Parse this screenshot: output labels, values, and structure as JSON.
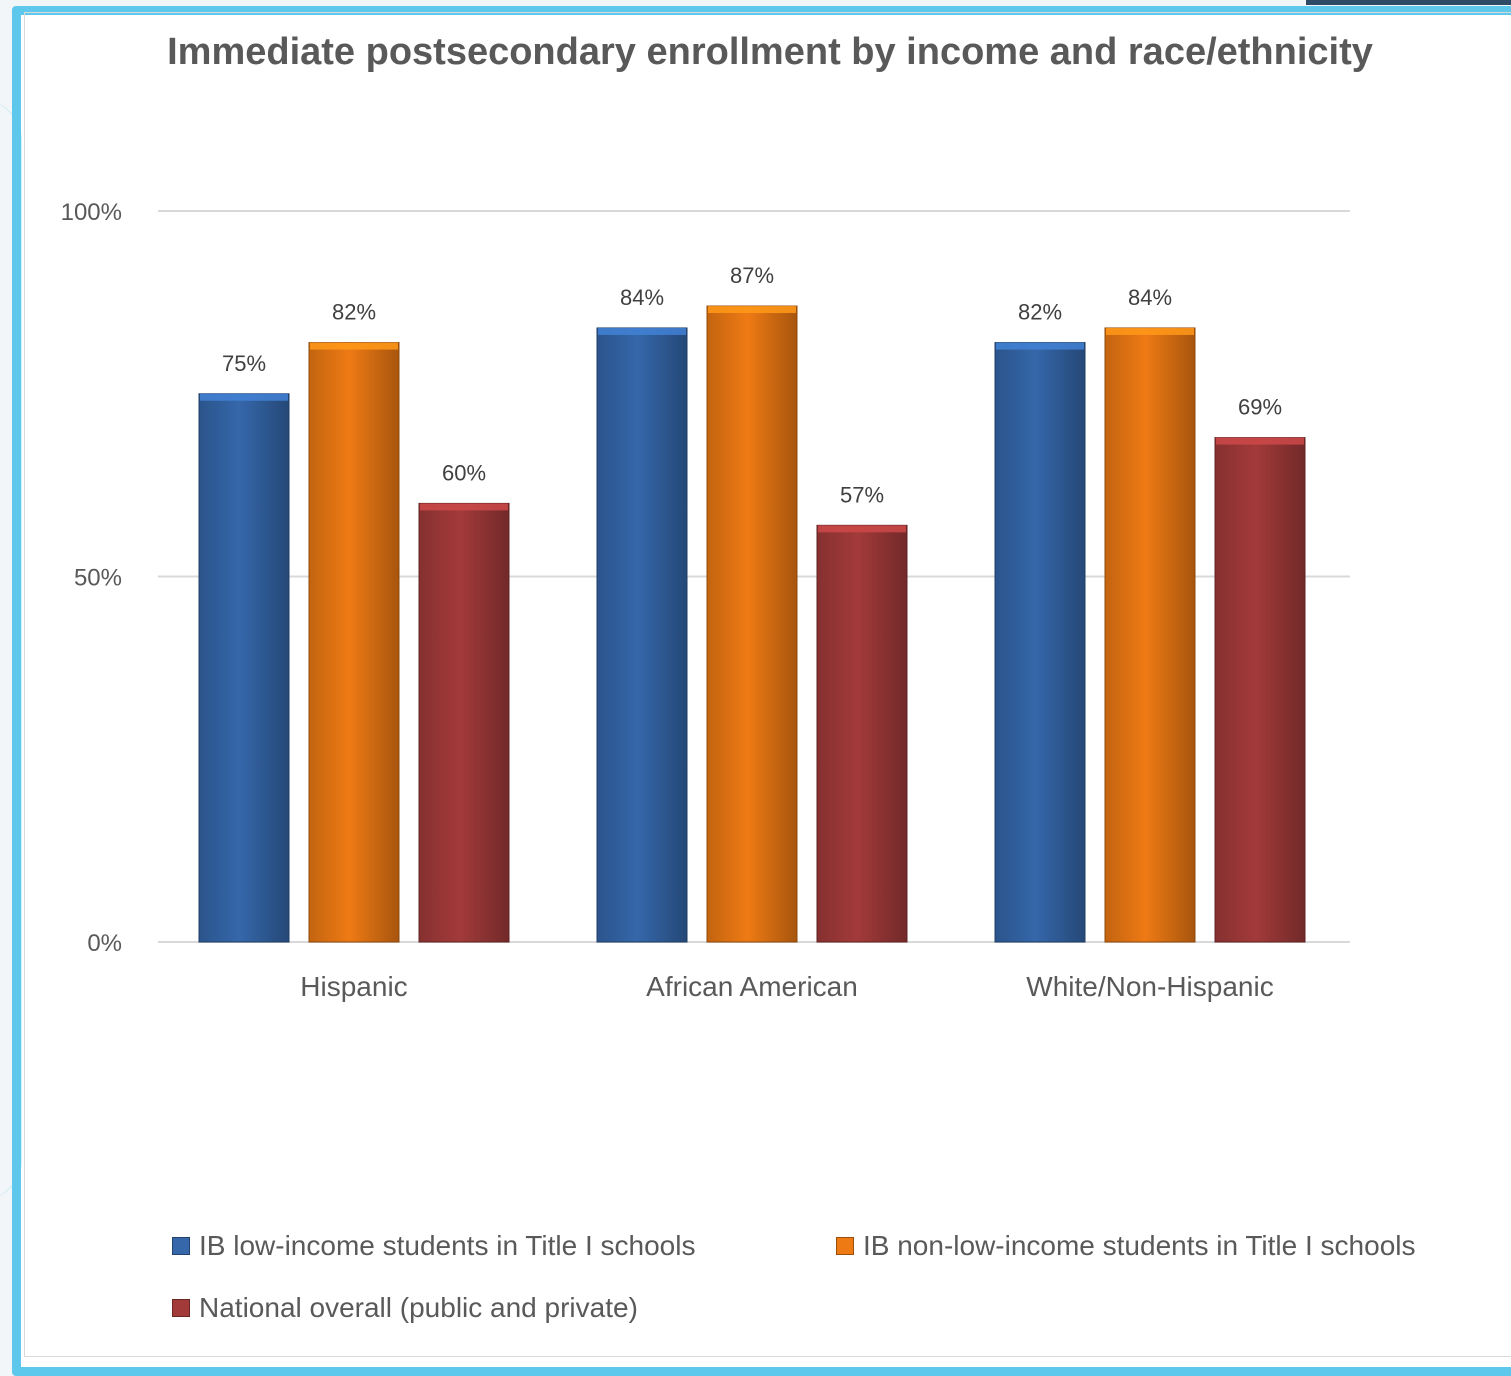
{
  "chart_data": {
    "type": "bar",
    "title": "Immediate postsecondary enrollment by income and race/ethnicity",
    "categories": [
      "Hispanic",
      "African American",
      "White/Non-Hispanic"
    ],
    "series": [
      {
        "name": "IB low-income students in Title I schools",
        "values": [
          75,
          84,
          82
        ],
        "labels": [
          "75%",
          "84%",
          "82%"
        ],
        "color": "#3567aa"
      },
      {
        "name": "IB non-low-income students in Title I schools",
        "values": [
          82,
          87,
          84
        ],
        "labels": [
          "82%",
          "87%",
          "84%"
        ],
        "color": "#ee7a14"
      },
      {
        "name": "National overall (public and private)",
        "values": [
          60,
          57,
          69
        ],
        "labels": [
          "60%",
          "57%",
          "69%"
        ],
        "color": "#a33a3a"
      }
    ],
    "yticks": [
      "0%",
      "50%",
      "100%"
    ],
    "ytick_values": [
      0,
      50,
      100
    ],
    "ylim": [
      0,
      100
    ],
    "xlabel": "",
    "ylabel": "",
    "grid": true,
    "legend_position": "bottom"
  }
}
